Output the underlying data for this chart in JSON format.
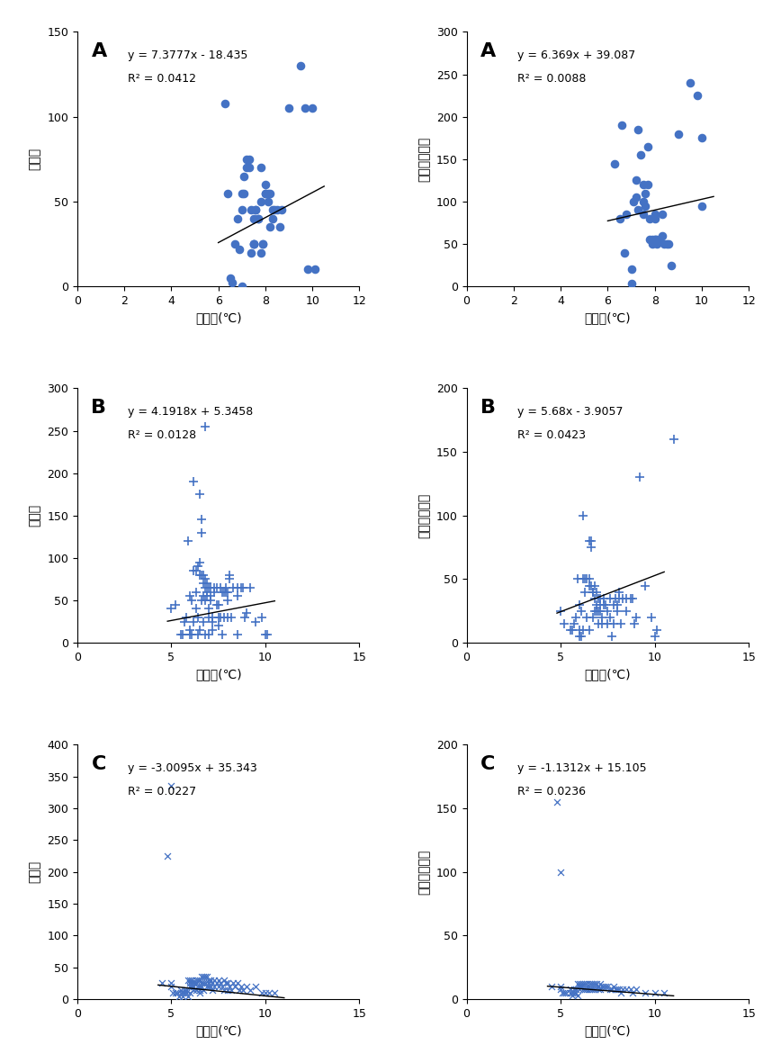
{
  "panels": [
    {
      "label": "A",
      "eq": "y = 7.3777x - 18.435",
      "r2": "R² = 0.0412",
      "slope": 7.3777,
      "intercept": -18.435,
      "xmin": 0,
      "xmax": 12,
      "xticks": [
        0,
        2,
        4,
        6,
        8,
        10,
        12
      ],
      "ymin": 0,
      "ymax": 150,
      "yticks": [
        0,
        50,
        100,
        150
      ],
      "xlabel": "일교차(℃)",
      "ylabel": "발생수",
      "marker": "o",
      "color": "#4472C4",
      "x_data": [
        6.3,
        6.4,
        6.5,
        6.6,
        6.7,
        6.8,
        6.9,
        7.0,
        7.0,
        7.0,
        7.1,
        7.1,
        7.2,
        7.2,
        7.3,
        7.3,
        7.4,
        7.4,
        7.5,
        7.5,
        7.5,
        7.5,
        7.6,
        7.6,
        7.7,
        7.7,
        7.8,
        7.8,
        7.8,
        7.9,
        7.9,
        8.0,
        8.0,
        8.0,
        8.1,
        8.1,
        8.2,
        8.2,
        8.3,
        8.3,
        8.4,
        8.5,
        8.6,
        8.7,
        9.0,
        9.5,
        9.7,
        9.8,
        10.0,
        10.1
      ],
      "y_data": [
        108,
        55,
        5,
        2,
        25,
        40,
        22,
        45,
        55,
        0,
        55,
        65,
        75,
        70,
        75,
        70,
        20,
        45,
        40,
        25,
        25,
        25,
        45,
        45,
        40,
        40,
        50,
        20,
        70,
        25,
        25,
        60,
        55,
        55,
        55,
        50,
        35,
        55,
        40,
        45,
        45,
        45,
        35,
        45,
        105,
        130,
        105,
        10,
        105,
        10
      ],
      "trendline_x": [
        6.0,
        10.5
      ]
    },
    {
      "label": "A",
      "eq": "y = 6.369x + 39.087",
      "r2": "R² = 0.0088",
      "slope": 6.369,
      "intercept": 39.087,
      "xmin": 0,
      "xmax": 12,
      "xticks": [
        0,
        2,
        4,
        6,
        8,
        10,
        12
      ],
      "ymin": 0,
      "ymax": 300,
      "yticks": [
        0,
        50,
        100,
        150,
        200,
        250,
        300
      ],
      "xlabel": "일교차(℃)",
      "ylabel": "만명당발생률",
      "marker": "o",
      "color": "#4472C4",
      "x_data": [
        6.3,
        6.5,
        6.6,
        6.7,
        6.8,
        7.0,
        7.0,
        7.1,
        7.2,
        7.2,
        7.3,
        7.3,
        7.4,
        7.5,
        7.5,
        7.5,
        7.6,
        7.6,
        7.7,
        7.7,
        7.8,
        7.8,
        7.9,
        7.9,
        8.0,
        8.0,
        8.0,
        8.0,
        8.1,
        8.1,
        8.2,
        8.3,
        8.3,
        8.4,
        8.5,
        8.6,
        8.7,
        9.0,
        9.5,
        9.8,
        10.0,
        10.0
      ],
      "y_data": [
        145,
        80,
        190,
        40,
        85,
        3,
        20,
        100,
        105,
        125,
        90,
        185,
        155,
        120,
        100,
        85,
        110,
        95,
        120,
        165,
        80,
        55,
        50,
        55,
        55,
        55,
        85,
        80,
        55,
        50,
        55,
        85,
        60,
        50,
        50,
        50,
        25,
        180,
        240,
        225,
        95,
        175
      ],
      "trendline_x": [
        6.0,
        10.5
      ]
    },
    {
      "label": "B",
      "eq": "y = 4.1918x + 5.3458",
      "r2": "R² = 0.0128",
      "slope": 4.1918,
      "intercept": 5.3458,
      "xmin": 0,
      "xmax": 15,
      "xticks": [
        0,
        5,
        10,
        15
      ],
      "ymin": 0,
      "ymax": 300,
      "yticks": [
        0,
        50,
        100,
        150,
        200,
        250,
        300
      ],
      "xlabel": "일교차(℃)",
      "ylabel": "발생수",
      "marker": "+",
      "color": "#4472C4",
      "x_data": [
        5.0,
        5.2,
        5.5,
        5.6,
        5.7,
        5.8,
        5.9,
        6.0,
        6.0,
        6.0,
        6.1,
        6.1,
        6.2,
        6.2,
        6.2,
        6.3,
        6.3,
        6.3,
        6.4,
        6.4,
        6.4,
        6.5,
        6.5,
        6.5,
        6.5,
        6.6,
        6.6,
        6.6,
        6.6,
        6.7,
        6.7,
        6.7,
        6.7,
        6.8,
        6.8,
        6.8,
        6.8,
        6.9,
        6.9,
        6.9,
        7.0,
        7.0,
        7.0,
        7.0,
        7.1,
        7.1,
        7.1,
        7.2,
        7.2,
        7.2,
        7.3,
        7.3,
        7.4,
        7.4,
        7.5,
        7.5,
        7.5,
        7.6,
        7.6,
        7.7,
        7.7,
        7.8,
        7.8,
        7.9,
        7.9,
        8.0,
        8.0,
        8.0,
        8.1,
        8.1,
        8.2,
        8.3,
        8.5,
        8.5,
        8.5,
        8.7,
        8.8,
        8.9,
        9.0,
        9.2,
        9.5,
        9.8,
        10.0,
        10.1,
        6.8
      ],
      "y_data": [
        40,
        45,
        10,
        10,
        25,
        30,
        120,
        55,
        15,
        10,
        10,
        50,
        190,
        85,
        25,
        60,
        85,
        40,
        90,
        30,
        10,
        175,
        95,
        80,
        15,
        145,
        130,
        80,
        50,
        80,
        70,
        55,
        25,
        75,
        65,
        50,
        10,
        70,
        60,
        55,
        65,
        40,
        30,
        10,
        65,
        55,
        50,
        30,
        25,
        15,
        65,
        60,
        65,
        45,
        45,
        30,
        20,
        65,
        30,
        10,
        60,
        60,
        30,
        65,
        60,
        60,
        50,
        30,
        80,
        75,
        30,
        65,
        65,
        55,
        10,
        65,
        65,
        30,
        35,
        65,
        25,
        30,
        10,
        10,
        255
      ],
      "trendline_x": [
        4.8,
        10.5
      ]
    },
    {
      "label": "B",
      "eq": "y = 5.68x - 3.9057",
      "r2": "R² = 0.0423",
      "slope": 5.68,
      "intercept": -3.9057,
      "xmin": 0,
      "xmax": 15,
      "xticks": [
        0,
        5,
        10,
        15
      ],
      "ymin": 0,
      "ymax": 200,
      "yticks": [
        0,
        50,
        100,
        150,
        200
      ],
      "xlabel": "일교차(℃)",
      "ylabel": "만명당발생률",
      "marker": "+",
      "color": "#4472C4",
      "x_data": [
        5.0,
        5.2,
        5.5,
        5.6,
        5.7,
        5.8,
        5.9,
        6.0,
        6.0,
        6.0,
        6.1,
        6.1,
        6.2,
        6.2,
        6.2,
        6.3,
        6.3,
        6.4,
        6.4,
        6.5,
        6.5,
        6.5,
        6.5,
        6.6,
        6.6,
        6.6,
        6.7,
        6.7,
        6.7,
        6.8,
        6.8,
        6.8,
        6.9,
        6.9,
        6.9,
        7.0,
        7.0,
        7.0,
        7.1,
        7.1,
        7.1,
        7.2,
        7.2,
        7.3,
        7.3,
        7.4,
        7.5,
        7.5,
        7.6,
        7.6,
        7.7,
        7.8,
        7.8,
        7.9,
        8.0,
        8.0,
        8.1,
        8.1,
        8.2,
        8.3,
        8.5,
        8.5,
        8.7,
        8.8,
        8.9,
        9.0,
        9.2,
        9.5,
        9.8,
        10.0,
        10.1,
        11.0
      ],
      "y_data": [
        25,
        15,
        10,
        10,
        15,
        20,
        50,
        30,
        10,
        5,
        5,
        25,
        100,
        50,
        10,
        40,
        50,
        50,
        20,
        80,
        50,
        45,
        10,
        80,
        75,
        45,
        40,
        40,
        20,
        45,
        35,
        25,
        40,
        30,
        25,
        35,
        25,
        15,
        35,
        30,
        25,
        20,
        15,
        35,
        30,
        30,
        25,
        15,
        35,
        20,
        5,
        30,
        15,
        35,
        30,
        25,
        40,
        35,
        15,
        35,
        35,
        25,
        35,
        35,
        15,
        20,
        130,
        45,
        20,
        5,
        10,
        160
      ],
      "trendline_x": [
        4.8,
        10.5
      ]
    },
    {
      "label": "C",
      "eq": "y = -3.0095x + 35.343",
      "r2": "R² = 0.0227",
      "slope": -3.0095,
      "intercept": 35.343,
      "xmin": 0,
      "xmax": 15,
      "xticks": [
        0,
        5,
        10,
        15
      ],
      "ymin": 0,
      "ymax": 400,
      "yticks": [
        0,
        50,
        100,
        150,
        200,
        250,
        300,
        350,
        400
      ],
      "xlabel": "일교차(℃)",
      "ylabel": "발생수",
      "marker": "x",
      "color": "#4472C4",
      "x_data": [
        4.5,
        5.0,
        5.0,
        5.1,
        5.2,
        5.3,
        5.4,
        5.5,
        5.5,
        5.6,
        5.6,
        5.7,
        5.7,
        5.8,
        5.8,
        5.9,
        5.9,
        6.0,
        6.0,
        6.0,
        6.0,
        6.1,
        6.1,
        6.1,
        6.2,
        6.2,
        6.2,
        6.3,
        6.3,
        6.3,
        6.4,
        6.4,
        6.5,
        6.5,
        6.5,
        6.5,
        6.6,
        6.6,
        6.6,
        6.7,
        6.7,
        6.7,
        6.8,
        6.8,
        6.9,
        6.9,
        7.0,
        7.0,
        7.0,
        7.1,
        7.1,
        7.2,
        7.2,
        7.3,
        7.3,
        7.4,
        7.5,
        7.5,
        7.6,
        7.7,
        7.8,
        7.8,
        7.9,
        8.0,
        8.0,
        8.1,
        8.2,
        8.3,
        8.4,
        8.5,
        8.6,
        8.7,
        8.8,
        9.0,
        9.2,
        9.5,
        9.8,
        10.0,
        10.2,
        10.5,
        5.0,
        4.8
      ],
      "y_data": [
        25,
        25,
        20,
        10,
        10,
        10,
        5,
        15,
        10,
        10,
        5,
        15,
        10,
        15,
        10,
        30,
        5,
        30,
        25,
        20,
        10,
        30,
        25,
        20,
        25,
        20,
        15,
        30,
        25,
        15,
        30,
        20,
        30,
        20,
        15,
        10,
        35,
        25,
        20,
        35,
        25,
        15,
        35,
        25,
        35,
        20,
        30,
        25,
        20,
        30,
        20,
        25,
        15,
        30,
        20,
        25,
        30,
        20,
        25,
        20,
        30,
        15,
        25,
        25,
        15,
        20,
        15,
        25,
        20,
        25,
        15,
        20,
        15,
        20,
        15,
        20,
        10,
        10,
        10,
        10,
        335,
        225
      ],
      "trendline_x": [
        4.3,
        11.0
      ]
    },
    {
      "label": "C",
      "eq": "y = -1.1312x + 15.105",
      "r2": "R² = 0.0236",
      "slope": -1.1312,
      "intercept": 15.105,
      "xmin": 0,
      "xmax": 15,
      "xticks": [
        0,
        5,
        10,
        15
      ],
      "ymin": 0,
      "ymax": 200,
      "yticks": [
        0,
        50,
        100,
        150,
        200
      ],
      "xlabel": "일교차(℃)",
      "ylabel": "만명당발생률",
      "marker": "x",
      "color": "#4472C4",
      "x_data": [
        4.5,
        5.0,
        5.0,
        5.1,
        5.2,
        5.3,
        5.5,
        5.5,
        5.6,
        5.6,
        5.7,
        5.7,
        5.8,
        5.8,
        5.9,
        5.9,
        6.0,
        6.0,
        6.0,
        6.1,
        6.1,
        6.2,
        6.2,
        6.3,
        6.3,
        6.4,
        6.4,
        6.5,
        6.5,
        6.6,
        6.6,
        6.7,
        6.7,
        6.8,
        6.8,
        6.9,
        7.0,
        7.0,
        7.1,
        7.1,
        7.2,
        7.3,
        7.4,
        7.5,
        7.6,
        7.7,
        7.8,
        7.9,
        8.0,
        8.1,
        8.2,
        8.3,
        8.5,
        8.7,
        8.8,
        9.0,
        9.5,
        10.0,
        10.5,
        5.0,
        4.8
      ],
      "y_data": [
        10,
        10,
        8,
        5,
        5,
        5,
        8,
        5,
        5,
        3,
        8,
        5,
        8,
        5,
        12,
        3,
        12,
        10,
        8,
        12,
        10,
        12,
        8,
        12,
        8,
        12,
        8,
        12,
        8,
        12,
        8,
        12,
        8,
        12,
        8,
        12,
        10,
        8,
        12,
        8,
        10,
        10,
        10,
        10,
        8,
        8,
        10,
        8,
        8,
        8,
        5,
        8,
        8,
        8,
        5,
        8,
        5,
        5,
        5,
        100,
        155
      ],
      "trendline_x": [
        4.3,
        11.0
      ]
    }
  ]
}
